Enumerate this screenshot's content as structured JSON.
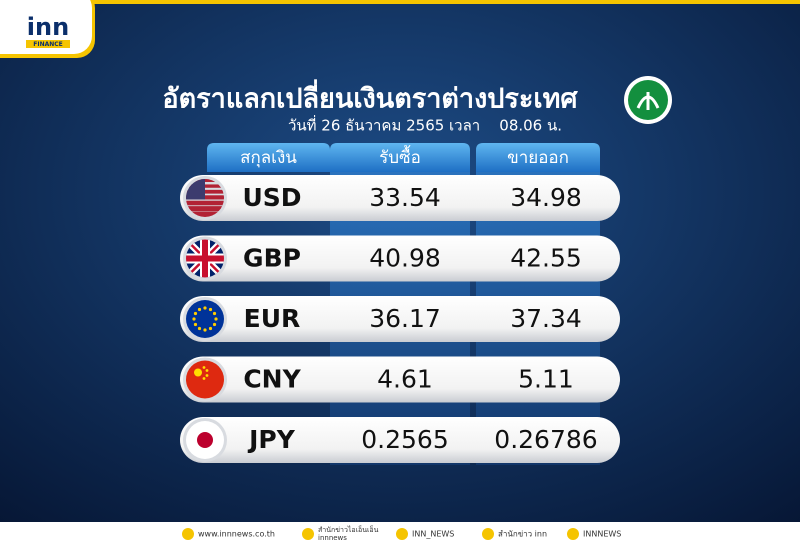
{
  "logo": {
    "name": "inn",
    "tag": "FINANCE"
  },
  "header": {
    "title": "อัตราแลกเปลี่ยนเงินตราต่างประเทศ",
    "subtitle": "วันที่ 26 ธันวาคม 2565 เวลา    08.06 น."
  },
  "table": {
    "columns": [
      "สกุลเงิน",
      "รับซื้อ",
      "ขายออก"
    ],
    "rows": [
      [
        "USD",
        "33.54",
        "34.98"
      ],
      [
        "GBP",
        "40.98",
        "42.55"
      ],
      [
        "EUR",
        "36.17",
        "37.34"
      ],
      [
        "CNY",
        "4.61",
        "5.11"
      ],
      [
        "JPY",
        "0.2565",
        "0.26786"
      ]
    ]
  },
  "footer": {
    "website": "www.innnews.co.th",
    "facebook": [
      "สำนักข่าวไอเอ็นเอ็น",
      "innnews"
    ],
    "tiktok": "INN_NEWS",
    "twitter": "สำนักข่าว inn",
    "youtube": "INNNEWS"
  }
}
